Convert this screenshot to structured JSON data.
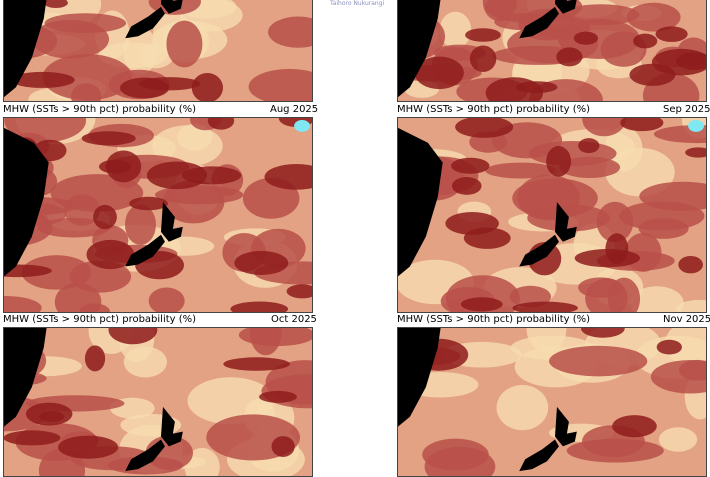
{
  "credit": "Taihoro Nukurangi",
  "panel_title": "MHW (SSTs > 90th pct) probability (%)",
  "panels": [
    {
      "month": ""
    },
    {
      "month": ""
    },
    {
      "month": "Aug 2025"
    },
    {
      "month": "Sep 2025"
    },
    {
      "month": "Oct 2025"
    },
    {
      "month": "Nov 2025"
    }
  ],
  "colors": {
    "low": "#f6dcb0",
    "mid": "#e3a283",
    "high": "#b8504a",
    "very_high": "#8e1c1c",
    "land": "#000000",
    "ice": "#7fe8f2"
  }
}
